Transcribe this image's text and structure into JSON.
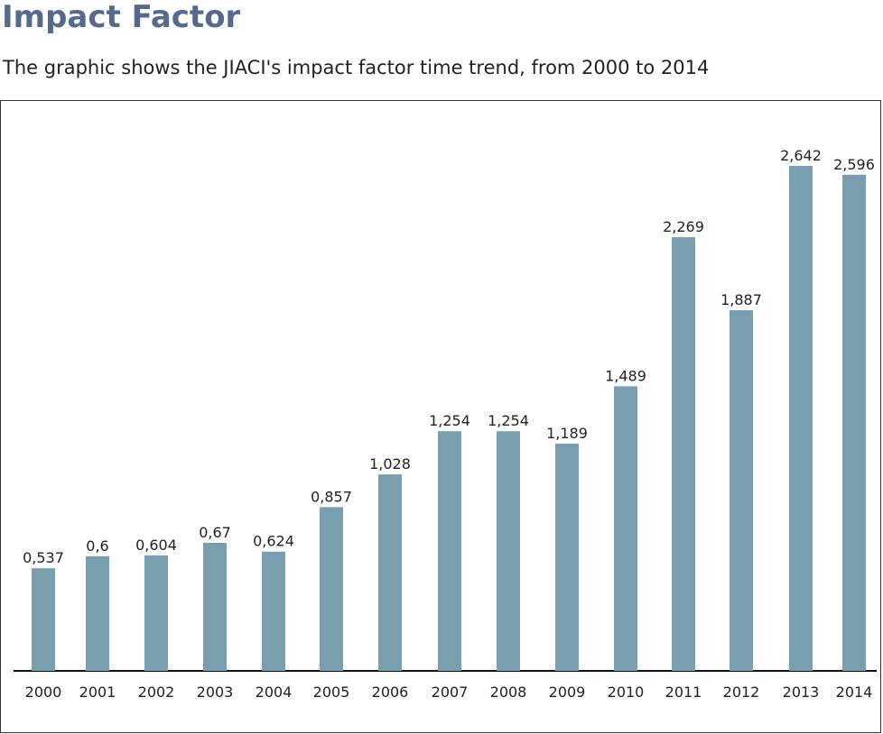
{
  "header": {
    "title": "Impact Factor",
    "subtitle": "The graphic shows the JIACI's impact factor time trend, from 2000 to 2014"
  },
  "colors": {
    "title": "#556a8c",
    "bar": "#789fb0",
    "text": "#222222",
    "axis": "#111111"
  },
  "chart_data": {
    "type": "bar",
    "title": "",
    "xlabel": "",
    "ylabel": "",
    "categories": [
      "2000",
      "2001",
      "2002",
      "2003",
      "2004",
      "2005",
      "2006",
      "2007",
      "2008",
      "2009",
      "2010",
      "2011",
      "2012",
      "2013",
      "2014"
    ],
    "values": [
      0.537,
      0.6,
      0.604,
      0.67,
      0.624,
      0.857,
      1.028,
      1.254,
      1.254,
      1.189,
      1.489,
      2.269,
      1.887,
      2.642,
      2.596
    ],
    "value_labels": [
      "0,537",
      "0,6",
      "0,604",
      "0,67",
      "0,624",
      "0,857",
      "1,028",
      "1,254",
      "1,254",
      "1,189",
      "1,489",
      "2,269",
      "1,887",
      "2,642",
      "2,596"
    ],
    "ylim": [
      0,
      2.8
    ],
    "grid": false,
    "legend": "none"
  }
}
